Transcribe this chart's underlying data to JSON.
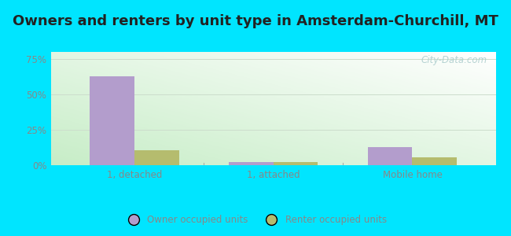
{
  "title": "Owners and renters by unit type in Amsterdam-Churchill, MT",
  "categories": [
    "1, detached",
    "1, attached",
    "Mobile home"
  ],
  "owner_values": [
    63.0,
    2.5,
    13.0
  ],
  "renter_values": [
    10.5,
    2.5,
    5.5
  ],
  "owner_color": "#b39dcc",
  "renter_color": "#b5bc6e",
  "yticks": [
    0,
    25,
    50,
    75
  ],
  "ytick_labels": [
    "0%",
    "25%",
    "50%",
    "75%"
  ],
  "ylim": [
    0,
    80
  ],
  "bar_width": 0.32,
  "outer_bg": "#00e5ff",
  "title_fontsize": 13,
  "title_color": "#222222",
  "tick_color": "#888888",
  "grid_color": "#ccddcc",
  "legend_owner": "Owner occupied units",
  "legend_renter": "Renter occupied units",
  "watermark": "City-Data.com",
  "watermark_color": "#aacccc",
  "bg_color_left": "#c8e8c0",
  "bg_color_right": "#f0faf8"
}
